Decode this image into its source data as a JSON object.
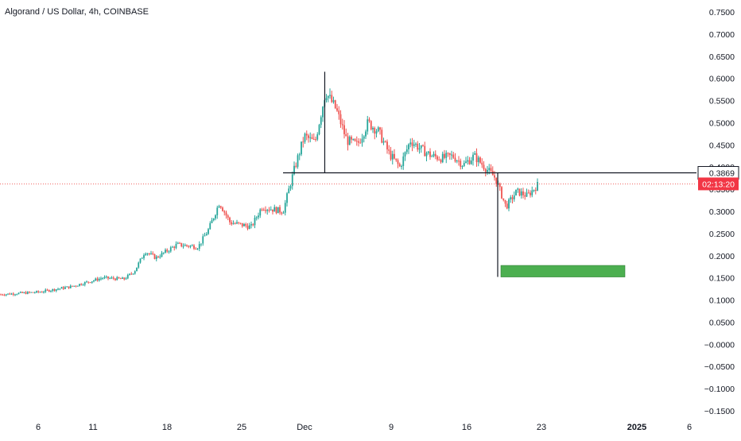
{
  "header": {
    "title": "Algorand / US Dollar, 4h, COINBASE"
  },
  "price_axis": {
    "ticks": [
      "0.7500",
      "0.7000",
      "0.6500",
      "0.6000",
      "0.5500",
      "0.5000",
      "0.4500",
      "0.4000",
      "0.3500",
      "0.3000",
      "0.2500",
      "0.2000",
      "0.1500",
      "0.1000",
      "0.0500",
      "−0.0000",
      "−0.0500",
      "−0.1000",
      "−0.1500"
    ],
    "tick_values": [
      0.75,
      0.7,
      0.65,
      0.6,
      0.55,
      0.5,
      0.45,
      0.4,
      0.35,
      0.3,
      0.25,
      0.2,
      0.15,
      0.1,
      0.05,
      0.0,
      -0.05,
      -0.1,
      -0.15
    ],
    "level_label": "0.3869",
    "countdown_label": "02:13:20"
  },
  "time_axis": {
    "labels": [
      "6",
      "11",
      "18",
      "25",
      "Dec",
      "9",
      "16",
      "23",
      "2025",
      "6"
    ],
    "bold": [
      false,
      false,
      false,
      false,
      false,
      false,
      false,
      false,
      true,
      false
    ]
  },
  "colors": {
    "up": "#26a69a",
    "down": "#ef5350",
    "level_line": "#ffffff",
    "label_bg": "#ffffff",
    "label_border": "#131722",
    "countdown_bg": "#f23645",
    "target_box": "#4caf50",
    "grid": "#f0f3fa",
    "axis_text": "#131722"
  },
  "chart_data": {
    "type": "candlestick",
    "title": "Algorand / US Dollar, 4h, COINBASE",
    "ylim": [
      -0.15,
      0.75
    ],
    "grid": false,
    "price_path": [
      {
        "x": "Nov 2",
        "y": 0.112
      },
      {
        "x": "Nov 6",
        "y": 0.118
      },
      {
        "x": "Nov 9",
        "y": 0.13
      },
      {
        "x": "Nov 12",
        "y": 0.15
      },
      {
        "x": "Nov 14",
        "y": 0.147
      },
      {
        "x": "Nov 15",
        "y": 0.165
      },
      {
        "x": "Nov 16",
        "y": 0.21
      },
      {
        "x": "Nov 17",
        "y": 0.195
      },
      {
        "x": "Nov 19",
        "y": 0.225
      },
      {
        "x": "Nov 21",
        "y": 0.22
      },
      {
        "x": "Nov 22",
        "y": 0.26
      },
      {
        "x": "Nov 23",
        "y": 0.32
      },
      {
        "x": "Nov 24",
        "y": 0.275
      },
      {
        "x": "Nov 26",
        "y": 0.265
      },
      {
        "x": "Nov 27",
        "y": 0.31
      },
      {
        "x": "Nov 29",
        "y": 0.3
      },
      {
        "x": "Nov 30",
        "y": 0.39
      },
      {
        "x": "Dec 1",
        "y": 0.47
      },
      {
        "x": "Dec 2",
        "y": 0.455
      },
      {
        "x": "Dec 3",
        "y": 0.57
      },
      {
        "x": "Dec 4",
        "y": 0.53
      },
      {
        "x": "Dec 5",
        "y": 0.46
      },
      {
        "x": "Dec 6",
        "y": 0.45
      },
      {
        "x": "Dec 7",
        "y": 0.5
      },
      {
        "x": "Dec 8",
        "y": 0.48
      },
      {
        "x": "Dec 9",
        "y": 0.43
      },
      {
        "x": "Dec 10",
        "y": 0.4
      },
      {
        "x": "Dec 11",
        "y": 0.46
      },
      {
        "x": "Dec 12",
        "y": 0.44
      },
      {
        "x": "Dec 13",
        "y": 0.425
      },
      {
        "x": "Dec 14",
        "y": 0.42
      },
      {
        "x": "Dec 15",
        "y": 0.425
      },
      {
        "x": "Dec 16",
        "y": 0.405
      },
      {
        "x": "Dec 17",
        "y": 0.425
      },
      {
        "x": "Dec 18",
        "y": 0.4
      },
      {
        "x": "Dec 19",
        "y": 0.375
      },
      {
        "x": "Dec 20",
        "y": 0.31
      },
      {
        "x": "Dec 21",
        "y": 0.345
      },
      {
        "x": "Dec 22",
        "y": 0.335
      },
      {
        "x": "Dec 23",
        "y": 0.36
      }
    ],
    "annotations": {
      "horizontal_level": 0.3869,
      "last_price_line": 0.362,
      "peak_marker": {
        "x": "Dec 3",
        "from": 0.3869,
        "to": 0.615
      },
      "drop_marker": {
        "x": "Dec 19",
        "from": 0.3869,
        "to": 0.152
      },
      "target_zone": {
        "from": "Dec 19",
        "to": "Dec 31",
        "low": 0.152,
        "high": 0.178
      }
    }
  }
}
